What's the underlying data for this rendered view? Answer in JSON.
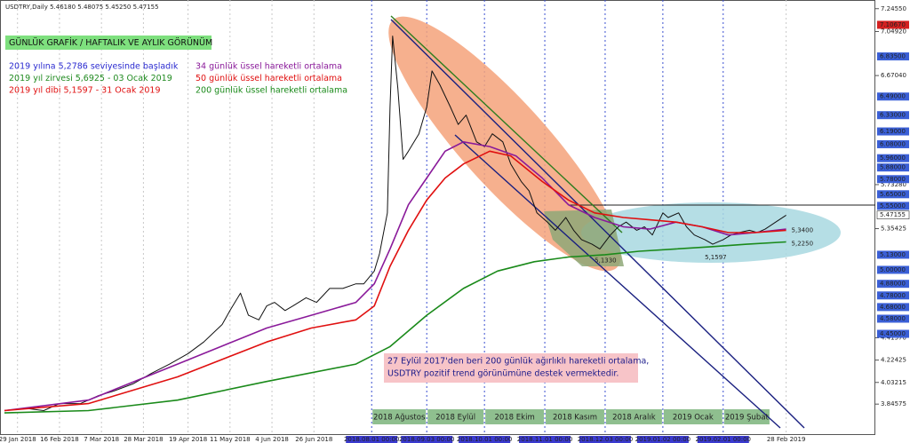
{
  "chart_data": {
    "type": "line",
    "title": "USDTRY,Daily  5.46180 5.48075 5.45250 5.47155",
    "badge": "GÜNLÜK GRAFİK / HAFTALIK VE AYLIK GÖRÜNÜM",
    "notes": [
      {
        "text": "2019 yılına 5,2786 seviyesinde başladık",
        "color": "#2a2ad0"
      },
      {
        "text": "2019 yıl zirvesi 5,6925 - 03 Ocak 2019",
        "color": "#1f8a1f"
      },
      {
        "text": "2019 yıl dibi 5,1597 - 31 Ocak 2019",
        "color": "#e01010"
      }
    ],
    "comment": [
      "27 Eylül 2017'den beri 200 günlük ağırlıklı hareketli ortalama,",
      "USDTRY pozitif trend görünümüne destek vermektedir."
    ],
    "xlim": [
      0,
      333
    ],
    "ylim": [
      3.58,
      7.32
    ],
    "xticks": [
      {
        "value": 6,
        "label": "29 Jan 2018"
      },
      {
        "value": 22,
        "label": "16 Feb 2018"
      },
      {
        "value": 38,
        "label": "7 Mar 2018"
      },
      {
        "value": 54,
        "label": "28 Mar 2018"
      },
      {
        "value": 71,
        "label": "19 Apr 2018"
      },
      {
        "value": 87,
        "label": "11 May 2018"
      },
      {
        "value": 103,
        "label": "4 Jun 2018"
      },
      {
        "value": 119,
        "label": "26 Jun 2018"
      },
      {
        "value": 141,
        "label": "2018.08.01 00:00"
      },
      {
        "value": 162,
        "label": "2018.09.03 00:00"
      },
      {
        "value": 184,
        "label": "2018.10.01 00:00"
      },
      {
        "value": 207,
        "label": "2018.11.01 00:00"
      },
      {
        "value": 230,
        "label": "2018.12.03 00:00"
      },
      {
        "value": 252,
        "label": "2019.01.02 00:00"
      },
      {
        "value": 275,
        "label": "2019.02.01 00:00"
      },
      {
        "value": 299,
        "label": "28 Feb 2019"
      }
    ],
    "yticks": [
      {
        "value": 7.2455,
        "label": "7.24550"
      },
      {
        "value": 7.0492,
        "label": "7.04920"
      },
      {
        "value": 6.6704,
        "label": "6.67040"
      },
      {
        "value": 5.7328,
        "label": "5.73280"
      },
      {
        "value": 5.35425,
        "label": "5.35425"
      },
      {
        "value": 4.4157,
        "label": "4.41570"
      },
      {
        "value": 4.22425,
        "label": "4.22425"
      },
      {
        "value": 4.03215,
        "label": "4.03215"
      },
      {
        "value": 3.84575,
        "label": "3.84575"
      }
    ],
    "levels": [
      {
        "value": 7.1067,
        "label": "7.10670",
        "color": "#d42020"
      },
      {
        "value": 6.835,
        "label": "6.83500",
        "color": "#3a5fd6"
      },
      {
        "value": 6.49,
        "label": "6.49000",
        "color": "#3a5fd6"
      },
      {
        "value": 6.33,
        "label": "6.33000",
        "color": "#3a5fd6"
      },
      {
        "value": 6.19,
        "label": "6.19000",
        "color": "#3a5fd6"
      },
      {
        "value": 6.08,
        "label": "6.08000",
        "color": "#3a5fd6"
      },
      {
        "value": 5.96,
        "label": "5.96000",
        "color": "#3a5fd6"
      },
      {
        "value": 5.88,
        "label": "5.88000",
        "color": "#3a5fd6"
      },
      {
        "value": 5.78,
        "label": "5.78000",
        "color": "#3a5fd6"
      },
      {
        "value": 5.65,
        "label": "5.65000",
        "color": "#3a5fd6"
      },
      {
        "value": 5.55,
        "label": "5.55000",
        "color": "#3a5fd6"
      },
      {
        "value": 5.47155,
        "label": "5.47155",
        "color": "#ffffff"
      },
      {
        "value": 5.13,
        "label": "5.13000",
        "color": "#3a5fd6"
      },
      {
        "value": 5.0,
        "label": "5.00000",
        "color": "#3a5fd6"
      },
      {
        "value": 4.88,
        "label": "4.88000",
        "color": "#3a5fd6"
      },
      {
        "value": 4.78,
        "label": "4.78000",
        "color": "#3a5fd6"
      },
      {
        "value": 4.68,
        "label": "4.68000",
        "color": "#3a5fd6"
      },
      {
        "value": 4.58,
        "label": "4.58000",
        "color": "#3a5fd6"
      },
      {
        "value": 4.45,
        "label": "4.45000",
        "color": "#3a5fd6"
      }
    ],
    "point_labels": [
      {
        "x": 226,
        "value": 5.133,
        "label": "5,1330"
      },
      {
        "x": 268,
        "value": 5.1597,
        "label": "5,1597"
      },
      {
        "x": 301,
        "value": 5.34,
        "label": "5,3400"
      },
      {
        "x": 301,
        "value": 5.225,
        "label": "5,2250"
      }
    ],
    "month_bands": [
      {
        "label": "2018 Ağustos",
        "x": [
          141,
          162
        ]
      },
      {
        "label": "2018 Eylül",
        "x": [
          162,
          184
        ]
      },
      {
        "label": "2018 Ekim",
        "x": [
          184,
          207
        ]
      },
      {
        "label": "2018 Kasım",
        "x": [
          207,
          230
        ]
      },
      {
        "label": "2018 Aralık",
        "x": [
          230,
          252
        ]
      },
      {
        "label": "2019 Ocak",
        "x": [
          252,
          275
        ]
      },
      {
        "label": "2019 Şubat",
        "x": [
          275,
          293
        ]
      }
    ],
    "series": [
      {
        "color": "#111111",
        "x": [
          1,
          9,
          16,
          22,
          30,
          37,
          43,
          50,
          57,
          64,
          71,
          77,
          84,
          87,
          91,
          94,
          98,
          101,
          104,
          108,
          111,
          116,
          120,
          125,
          130,
          135,
          138,
          142,
          144,
          147,
          148,
          149,
          151,
          153,
          155,
          159,
          162,
          164,
          167,
          171,
          174,
          177,
          181,
          184,
          187,
          191,
          194,
          198,
          201,
          204,
          208,
          211,
          215,
          218,
          221,
          225,
          228,
          232,
          235,
          238,
          242,
          245,
          248,
          252,
          254,
          258,
          261,
          264,
          268,
          271,
          275,
          278,
          281,
          285,
          288,
          291,
          295,
          299
        ],
        "values": [
          3.79,
          3.81,
          3.79,
          3.85,
          3.85,
          3.92,
          3.96,
          4.02,
          4.11,
          4.19,
          4.28,
          4.38,
          4.53,
          4.65,
          4.8,
          4.61,
          4.57,
          4.69,
          4.72,
          4.65,
          4.69,
          4.76,
          4.72,
          4.84,
          4.84,
          4.88,
          4.88,
          4.99,
          5.14,
          5.49,
          6.4,
          7.01,
          6.56,
          5.95,
          6.02,
          6.17,
          6.4,
          6.71,
          6.59,
          6.4,
          6.25,
          6.33,
          6.1,
          6.06,
          6.17,
          6.1,
          5.91,
          5.76,
          5.68,
          5.49,
          5.41,
          5.34,
          5.45,
          5.34,
          5.26,
          5.22,
          5.18,
          5.3,
          5.37,
          5.41,
          5.34,
          5.37,
          5.3,
          5.49,
          5.45,
          5.49,
          5.37,
          5.3,
          5.26,
          5.22,
          5.26,
          5.3,
          5.32,
          5.34,
          5.32,
          5.35,
          5.41,
          5.47
        ]
      },
      {
        "name": "34 günlük üssel hareketli ortalama",
        "color": "#8a1a9a",
        "x": [
          1,
          33,
          67,
          101,
          118,
          135,
          142,
          148,
          155,
          162,
          169,
          176,
          186,
          196,
          206,
          216,
          226,
          237,
          247,
          257,
          267,
          277,
          287,
          299
        ],
        "values": [
          3.79,
          3.88,
          4.19,
          4.5,
          4.61,
          4.72,
          4.88,
          5.18,
          5.56,
          5.79,
          6.02,
          6.1,
          6.06,
          5.98,
          5.79,
          5.56,
          5.45,
          5.37,
          5.35,
          5.41,
          5.37,
          5.3,
          5.32,
          5.35
        ]
      },
      {
        "name": "50 günlük üssel hareketli ortalama",
        "color": "#e01010",
        "x": [
          1,
          33,
          67,
          101,
          118,
          135,
          142,
          148,
          155,
          162,
          169,
          176,
          186,
          194,
          206,
          216,
          226,
          237,
          247,
          257,
          267,
          277,
          287,
          299
        ],
        "values": [
          3.79,
          3.85,
          4.08,
          4.38,
          4.5,
          4.57,
          4.69,
          5.03,
          5.34,
          5.6,
          5.79,
          5.91,
          6.02,
          5.98,
          5.76,
          5.6,
          5.49,
          5.45,
          5.43,
          5.41,
          5.37,
          5.32,
          5.32,
          5.34
        ]
      },
      {
        "name": "200 günlük üssel hareketli ortalama",
        "color": "#1a8a1a",
        "x": [
          1,
          33,
          67,
          101,
          135,
          148,
          162,
          176,
          189,
          203,
          216,
          230,
          243,
          257,
          271,
          284,
          299
        ],
        "values": [
          3.77,
          3.79,
          3.88,
          4.04,
          4.19,
          4.34,
          4.61,
          4.84,
          4.99,
          5.07,
          5.11,
          5.13,
          5.16,
          5.18,
          5.2,
          5.22,
          5.24
        ]
      }
    ]
  }
}
